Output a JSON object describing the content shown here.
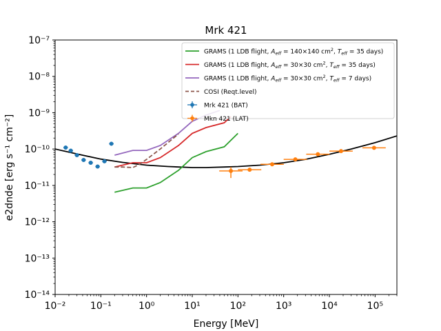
{
  "chart_data": {
    "type": "line",
    "title": "Mrk 421",
    "xlabel": "Energy [MeV]",
    "ylabel": "e2dnde [erg s⁻¹ cm⁻²]",
    "xscale": "log",
    "yscale": "log",
    "xlim": [
      0.01,
      300000
    ],
    "ylim": [
      1e-14,
      1e-07
    ],
    "grid": false,
    "legend_position": "top-right",
    "x_ticks": [
      {
        "value": 0.01,
        "label": "10⁻²"
      },
      {
        "value": 0.1,
        "label": "10⁻¹"
      },
      {
        "value": 1,
        "label": "10⁰"
      },
      {
        "value": 10,
        "label": "10¹"
      },
      {
        "value": 100,
        "label": "10²"
      },
      {
        "value": 1000,
        "label": "10³"
      },
      {
        "value": 10000,
        "label": "10⁴"
      },
      {
        "value": 100000,
        "label": "10⁵"
      }
    ],
    "y_ticks": [
      {
        "value": 1e-14,
        "label": "10⁻¹⁴"
      },
      {
        "value": 1e-13,
        "label": "10⁻¹³"
      },
      {
        "value": 1e-12,
        "label": "10⁻¹²"
      },
      {
        "value": 1e-11,
        "label": "10⁻¹¹"
      },
      {
        "value": 1e-10,
        "label": "10⁻¹⁰"
      },
      {
        "value": 1e-09,
        "label": "10⁻⁹"
      },
      {
        "value": 1e-08,
        "label": "10⁻⁸"
      },
      {
        "value": 1e-07,
        "label": "10⁻⁷"
      }
    ],
    "series": [
      {
        "name": "GRAMS (1 LDB flight, A_eff=140×140 cm², T_eff=35 days)",
        "legend_parts": [
          "GRAMS (1 LDB flight, ",
          "A",
          "eff",
          " = 140×140 cm",
          "2",
          ", ",
          "T",
          "eff",
          " = 35 days)"
        ],
        "kind": "line",
        "color": "#2ca02c",
        "dashed": false,
        "x": [
          0.2,
          0.5,
          1,
          2,
          5,
          10,
          20,
          50,
          100
        ],
        "y": [
          6.5e-12,
          8.5e-12,
          8.5e-12,
          1.2e-11,
          2.6e-11,
          5.8e-11,
          8.5e-11,
          1.15e-10,
          2.7e-10
        ]
      },
      {
        "name": "GRAMS (1 LDB flight, A_eff=30×30 cm², T_eff=35 days)",
        "legend_parts": [
          "GRAMS (1 LDB flight, ",
          "A",
          "eff",
          " = 30×30 cm",
          "2",
          ", ",
          "T",
          "eff",
          " = 35 days)"
        ],
        "kind": "line",
        "color": "#d62728",
        "dashed": false,
        "x": [
          0.2,
          0.5,
          1,
          2,
          5,
          10,
          20,
          50,
          70
        ],
        "y": [
          3.2e-11,
          4.2e-11,
          4.2e-11,
          5.8e-11,
          1.25e-10,
          2.7e-10,
          3.9e-10,
          5.3e-10,
          7.8e-10
        ]
      },
      {
        "name": "GRAMS (1 LDB flight, A_eff=30×30 cm², T_eff=7 days)",
        "legend_parts": [
          "GRAMS (1 LDB flight, ",
          "A",
          "eff",
          " = 30×30 cm",
          "2",
          ", ",
          "T",
          "eff",
          " = 7 days)"
        ],
        "kind": "line",
        "color": "#9467bd",
        "dashed": false,
        "x": [
          0.2,
          0.5,
          1,
          2,
          5,
          10,
          20,
          40
        ],
        "y": [
          6.8e-11,
          9.2e-11,
          9.2e-11,
          1.25e-10,
          2.7e-10,
          5.8e-10,
          8.6e-10,
          1.15e-09
        ]
      },
      {
        "name": "COSI (Reqt.level)",
        "legend_parts": [
          "COSI (Reqt.level)"
        ],
        "kind": "line",
        "color": "#8c564b",
        "dashed": true,
        "x": [
          0.2,
          0.3,
          0.5,
          0.7,
          1,
          2,
          5
        ],
        "y": [
          3.2e-11,
          3.2e-11,
          3.1e-11,
          3.8e-11,
          5.2e-11,
          1e-10,
          2.6e-10
        ]
      },
      {
        "name": "Mrk 421 (BAT)",
        "legend_parts": [
          "Mrk 421 (BAT)"
        ],
        "kind": "errorbar",
        "color": "#1f77b4",
        "x": [
          0.017,
          0.022,
          0.03,
          0.042,
          0.06,
          0.085,
          0.12,
          0.17
        ],
        "y": [
          1.1e-10,
          9e-11,
          6.8e-11,
          5e-11,
          4.2e-11,
          3.3e-11,
          4.6e-11,
          1.4e-10
        ],
        "xerr_factor": 1.12,
        "yerr_factor": 1.12
      },
      {
        "name": "Mkn 421 (LAT)",
        "legend_parts": [
          "Mkn 421 (LAT)"
        ],
        "kind": "errorbar",
        "color": "#ff7f0e",
        "x": [
          70,
          180,
          560,
          1800,
          5600,
          18000,
          95000
        ],
        "y": [
          2.5e-11,
          2.7e-11,
          3.8e-11,
          5.2e-11,
          7.2e-11,
          8.8e-11,
          1.08e-10
        ],
        "xerr_factor": 1.8,
        "yerr_lo": [
          1.6e-11,
          2.4e-11,
          3.5e-11,
          4.8e-11,
          6.6e-11,
          8e-11,
          9.8e-11
        ],
        "yerr_hi": [
          3.2e-11,
          3e-11,
          4.1e-11,
          5.6e-11,
          7.8e-11,
          9.6e-11,
          1.18e-10
        ]
      }
    ],
    "model": {
      "kind": "line",
      "color": "#000000",
      "x": [
        0.01,
        0.03,
        0.1,
        0.3,
        1,
        3,
        10,
        20,
        50,
        100,
        300,
        1000,
        3000,
        10000,
        30000,
        100000,
        300000
      ],
      "y": [
        1e-10,
        7.3e-11,
        5.3e-11,
        4.3e-11,
        3.6e-11,
        3.3e-11,
        3.1e-11,
        3.1e-11,
        3.2e-11,
        3.3e-11,
        3.6e-11,
        4.2e-11,
        5.2e-11,
        7.2e-11,
        1e-10,
        1.5e-10,
        2.3e-10
      ]
    }
  }
}
